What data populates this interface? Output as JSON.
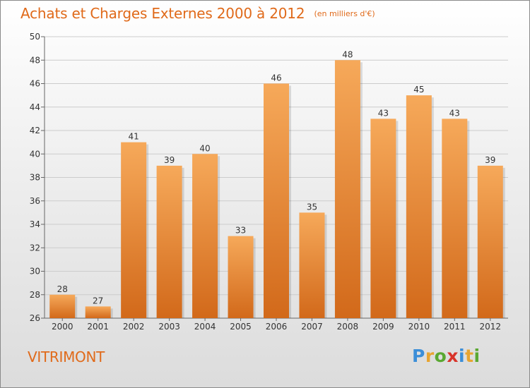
{
  "header": {
    "title": "Achats et Charges Externes 2000 à 2012",
    "unit": "(en milliers d'€)"
  },
  "commune": "VITRIMONT",
  "logo": {
    "text": "Proxiti",
    "letters": [
      {
        "ch": "P",
        "color": "#3b8ed8"
      },
      {
        "ch": "r",
        "color": "#e8a531"
      },
      {
        "ch": "o",
        "color": "#5aa832"
      },
      {
        "ch": "x",
        "color": "#d8342a"
      },
      {
        "ch": "i",
        "color": "#3b8ed8"
      },
      {
        "ch": "t",
        "color": "#e8a531"
      },
      {
        "ch": "i",
        "color": "#5aa832"
      }
    ]
  },
  "colors": {
    "accent": "#e06a1a",
    "bar_top": "#f6a95a",
    "bar_bottom": "#d2691a",
    "grid": "#cccccc"
  },
  "chart_data": {
    "type": "bar",
    "title": "Achats et Charges Externes 2000 à 2012",
    "subtitle": "(en milliers d'€)",
    "categories": [
      "2000",
      "2001",
      "2002",
      "2003",
      "2004",
      "2005",
      "2006",
      "2007",
      "2008",
      "2009",
      "2010",
      "2011",
      "2012"
    ],
    "values": [
      28,
      27,
      41,
      39,
      40,
      33,
      46,
      35,
      48,
      43,
      45,
      43,
      39
    ],
    "ylim": [
      26,
      50
    ],
    "yticks": [
      26,
      28,
      30,
      32,
      34,
      36,
      38,
      40,
      42,
      44,
      46,
      48,
      50
    ],
    "grid": true,
    "data_labels": true
  }
}
